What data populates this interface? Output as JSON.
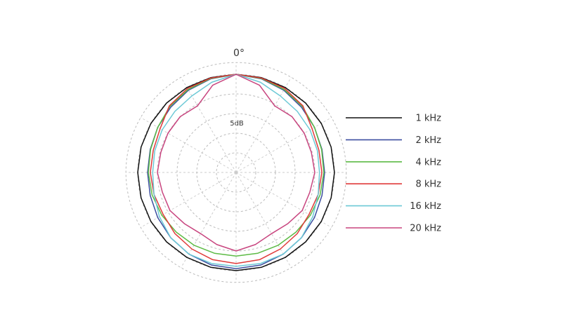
{
  "chart_data": {
    "type": "polar",
    "angle_label": "0°",
    "radial_label": "5dB",
    "theta": [
      0,
      15,
      30,
      45,
      60,
      75,
      90,
      105,
      120,
      135,
      150,
      165,
      180,
      195,
      210,
      225,
      240,
      255,
      270,
      285,
      300,
      315,
      330,
      345
    ],
    "rlim": [
      -25,
      3
    ],
    "rticks": [
      -20,
      -15,
      -10,
      -5,
      0
    ],
    "thetaticks": [
      0,
      30,
      60,
      90,
      120,
      150,
      180,
      210,
      240,
      270,
      300,
      330
    ],
    "series": [
      {
        "name": "1 kHz",
        "color": "#111111",
        "values": [
          0,
          0,
          0,
          0,
          0,
          0,
          0,
          0,
          0,
          0,
          0,
          0,
          0,
          0,
          0,
          0,
          0,
          0,
          0,
          0,
          0,
          0,
          0,
          0
        ]
      },
      {
        "name": "2 kHz",
        "color": "#3d4fa0",
        "values": [
          0,
          -0.3,
          -0.8,
          -1.5,
          -2,
          -2.4,
          -2.5,
          -2.4,
          -2,
          -1.5,
          -1,
          -0.6,
          -0.5,
          -0.6,
          -1,
          -1.5,
          -2,
          -2.4,
          -2.5,
          -2.4,
          -2,
          -1.5,
          -0.8,
          -0.3
        ]
      },
      {
        "name": "4 kHz",
        "color": "#5dbb46",
        "values": [
          0,
          -0.2,
          -0.6,
          -1.2,
          -2,
          -2.5,
          -2.7,
          -2.9,
          -3.2,
          -3.5,
          -3.6,
          -3.7,
          -3.7,
          -3.7,
          -3.6,
          -3.5,
          -3.2,
          -2.9,
          -2.7,
          -2.5,
          -2,
          -1.2,
          -0.6,
          -0.2
        ]
      },
      {
        "name": "8 kHz",
        "color": "#e03a3a",
        "values": [
          0,
          -0.1,
          -0.3,
          -1,
          -2.7,
          -3.2,
          -3.2,
          -3.4,
          -3.6,
          -3,
          -2.5,
          -2,
          -1.8,
          -2,
          -2.5,
          -3,
          -3.6,
          -3.4,
          -3.2,
          -3.2,
          -2.7,
          -1,
          -0.3,
          -0.1
        ]
      },
      {
        "name": "16 kHz",
        "color": "#6cc9d6",
        "values": [
          0,
          -1.2,
          -2.5,
          -3,
          -3.3,
          -3.6,
          -3.8,
          -3.4,
          -2.5,
          -1.5,
          -1,
          -1,
          -1.1,
          -1,
          -1,
          -1.5,
          -2.5,
          -3.4,
          -3.8,
          -3.6,
          -3.3,
          -3,
          -2.5,
          -1.2
        ]
      },
      {
        "name": "20 kHz",
        "color": "#c8457f",
        "values": [
          0,
          -2,
          -5.4,
          -4.9,
          -5,
          -5.2,
          -5,
          -5.6,
          -5.6,
          -6.5,
          -7,
          -6,
          -5,
          -6,
          -7,
          -6.5,
          -5.6,
          -5.6,
          -5,
          -5.2,
          -5,
          -4.9,
          -5.4,
          -2
        ]
      }
    ]
  }
}
